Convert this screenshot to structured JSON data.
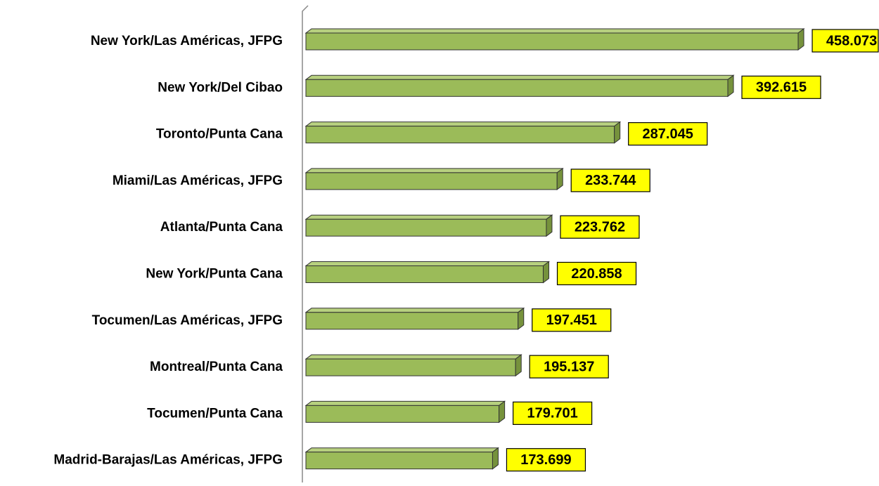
{
  "chart_data": {
    "type": "bar",
    "orientation": "horizontal",
    "categories": [
      "New York/Las Américas, JFPG",
      "New York/Del Cibao",
      "Toronto/Punta Cana",
      "Miami/Las Américas, JFPG",
      "Atlanta/Punta Cana",
      "New York/Punta Cana",
      "Tocumen/Las Américas, JFPG",
      "Montreal/Punta Cana",
      "Tocumen/Punta Cana",
      "Madrid-Barajas/Las Américas, JFPG"
    ],
    "values": [
      458073,
      392615,
      287045,
      233744,
      223762,
      220858,
      197451,
      195137,
      179701,
      173699
    ],
    "value_labels": [
      "458.073",
      "392.615",
      "287.045",
      "233.744",
      "223.762",
      "220.858",
      "197.451",
      "195.137",
      "179.701",
      "173.699"
    ],
    "color": "#9bbb59",
    "label_color": "#ffff00",
    "xlim": [
      0,
      460000
    ]
  }
}
